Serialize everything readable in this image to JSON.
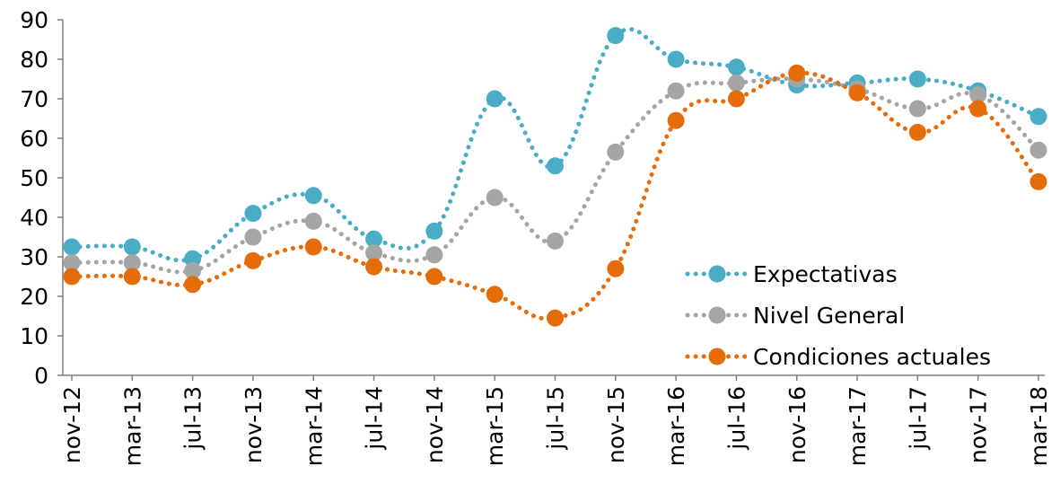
{
  "chart_data": {
    "type": "line",
    "title": "",
    "xlabel": "",
    "ylabel": "",
    "ylim": [
      0,
      90
    ],
    "y_ticks": [
      "0",
      "10",
      "20",
      "30",
      "40",
      "50",
      "60",
      "70",
      "80",
      "90"
    ],
    "categories": [
      "nov-12",
      "mar-13",
      "jul-13",
      "nov-13",
      "mar-14",
      "jul-14",
      "nov-14",
      "mar-15",
      "jul-15",
      "nov-15",
      "mar-16",
      "jul-16",
      "nov-16",
      "mar-17",
      "jul-17",
      "nov-17",
      "mar-18"
    ],
    "grid": false,
    "line_style": "dotted, smoothed, with circle markers",
    "legend_position": "bottom-right",
    "series": [
      {
        "name": "Expectativas",
        "color": "#4BACC6",
        "values": [
          32.5,
          32.5,
          29.5,
          41,
          45.5,
          34.5,
          36.5,
          70,
          53,
          86,
          80,
          78,
          73.5,
          74,
          75,
          72,
          65.5
        ]
      },
      {
        "name": "Nivel General",
        "color": "#A5A5A5",
        "values": [
          28.5,
          28.5,
          26.5,
          35,
          39,
          31,
          30.5,
          45,
          34,
          56.5,
          72,
          74,
          75,
          72.5,
          67.5,
          71,
          57
        ]
      },
      {
        "name": "Condiciones actuales",
        "color": "#E46C0A",
        "values": [
          25,
          25,
          23,
          29,
          32.5,
          27.5,
          25,
          20.5,
          14.5,
          27,
          64.5,
          70,
          76.5,
          71.5,
          61.5,
          67.5,
          49
        ]
      }
    ]
  }
}
